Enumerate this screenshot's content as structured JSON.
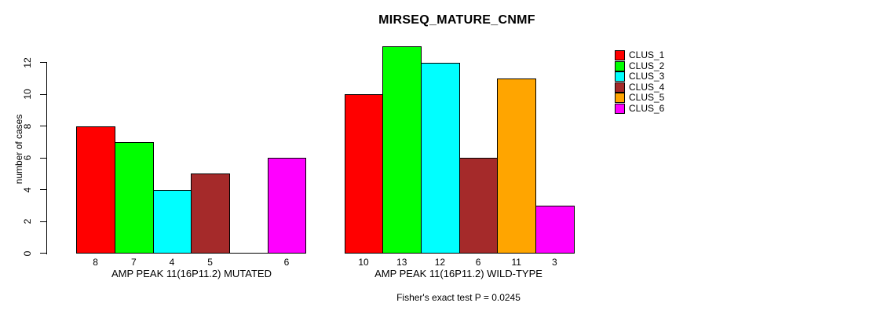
{
  "chart_data": {
    "type": "bar",
    "title": "MIRSEQ_MATURE_CNMF",
    "ylabel": "number of cases",
    "xlabel": "",
    "ylim": [
      0,
      12
    ],
    "yticks": [
      0,
      2,
      4,
      6,
      8,
      10,
      12
    ],
    "grid": false,
    "legend_position": "right",
    "categories": [
      "AMP PEAK 11(16P11.2) MUTATED",
      "AMP PEAK 11(16P11.2) WILD-TYPE"
    ],
    "series": [
      {
        "name": "CLUS_1",
        "color": "#ff0000",
        "values": [
          8,
          10
        ]
      },
      {
        "name": "CLUS_2",
        "color": "#00ff00",
        "values": [
          7,
          13
        ]
      },
      {
        "name": "CLUS_3",
        "color": "#00ffff",
        "values": [
          4,
          12
        ]
      },
      {
        "name": "CLUS_4",
        "color": "#a52a2a",
        "values": [
          5,
          6
        ]
      },
      {
        "name": "CLUS_5",
        "color": "#ffa500",
        "values": [
          0,
          11
        ]
      },
      {
        "name": "CLUS_6",
        "color": "#ff00ff",
        "values": [
          6,
          3
        ]
      }
    ],
    "bar_labels": [
      [
        "8",
        "7",
        "4",
        "5",
        "",
        "6"
      ],
      [
        "10",
        "13",
        "12",
        "6",
        "11",
        "3"
      ]
    ],
    "annotation": "Fisher's exact test P = 0.0245"
  }
}
